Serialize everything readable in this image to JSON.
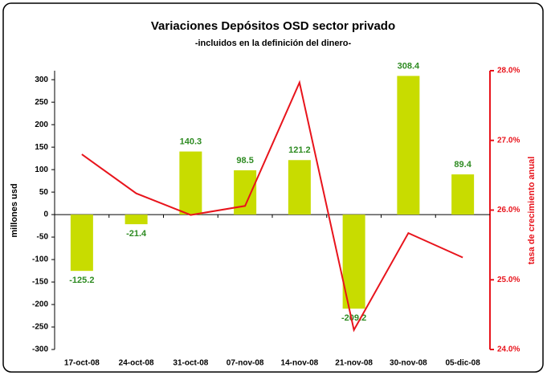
{
  "chart_data": {
    "type": "bar",
    "title": "Variaciones Depósitos OSD sector privado",
    "subtitle": "-incluidos en la definición del dinero-",
    "y_label": "millones usd",
    "y2_label": "tasa de crecimiento anual",
    "categories": [
      "17-oct-08",
      "24-oct-08",
      "31-oct-08",
      "07-nov-08",
      "14-nov-08",
      "21-nov-08",
      "30-nov-08",
      "05-dic-08"
    ],
    "series": [
      {
        "type": "bar",
        "color": "#c8dc00",
        "label_color": "#2e8b22",
        "values": [
          -125.2,
          -21.4,
          140.3,
          98.5,
          121.2,
          -209.2,
          308.4,
          89.4
        ]
      },
      {
        "type": "line",
        "color": "#e8141c",
        "axis": "y2",
        "values": [
          26.8,
          26.24,
          25.93,
          26.06,
          27.83,
          24.28,
          25.67,
          25.32
        ]
      }
    ],
    "ylim": [
      -300,
      320
    ],
    "yticks": [
      -300,
      -250,
      -200,
      -150,
      -100,
      -50,
      0,
      50,
      100,
      150,
      200,
      250,
      300
    ],
    "y2lim": [
      24,
      28
    ],
    "y2ticks": [
      {
        "value": 24,
        "label": "24.0%"
      },
      {
        "value": 25,
        "label": "25.0%"
      },
      {
        "value": 26,
        "label": "26.0%"
      },
      {
        "value": 27,
        "label": "27.0%"
      },
      {
        "value": 28,
        "label": "28.0%"
      }
    ],
    "y2_color": "#e8141c"
  }
}
